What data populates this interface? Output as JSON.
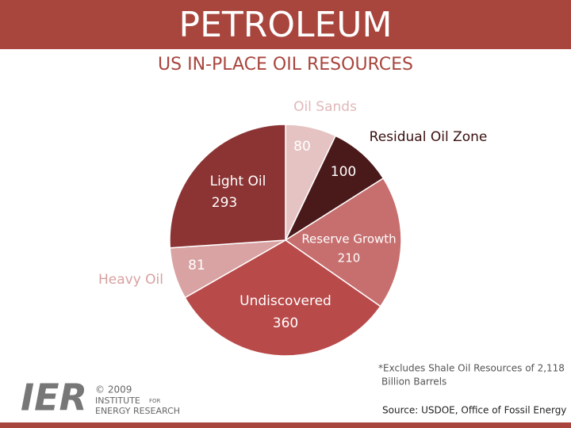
{
  "chart_data": {
    "type": "pie",
    "title": "PETROLEUM",
    "subtitle": "US IN-PLACE OIL RESOURCES",
    "categories": [
      "Oil Sands",
      "Residual Oil Zone",
      "Reserve Growth",
      "Undiscovered",
      "Heavy Oil",
      "Light Oil"
    ],
    "values": [
      80,
      100,
      210,
      360,
      81,
      293
    ],
    "colors": [
      "#e6c3c3",
      "#4a1919",
      "#c76f6f",
      "#b94a4a",
      "#d9a3a3",
      "#8c3434"
    ],
    "footnote": [
      "*Excludes Shale Oil Resources of 2,118",
      "Billion Barrels"
    ],
    "source": "Source: USDOE, Office of Fossil Energy"
  },
  "logo": {
    "mark": "IER",
    "copyright": "© 2009",
    "line1": "INSTITUTE",
    "line1b": "FOR",
    "line2": "ENERGY RESEARCH"
  }
}
